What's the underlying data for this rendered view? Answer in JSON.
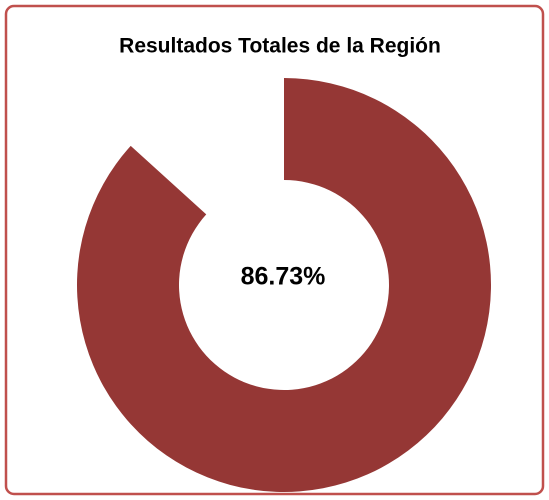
{
  "chart_data": {
    "type": "donut",
    "title": "Resultados Totales de la Región",
    "values": [
      86.73
    ],
    "value_labels": [
      "86.73%"
    ],
    "color": "#953735"
  }
}
